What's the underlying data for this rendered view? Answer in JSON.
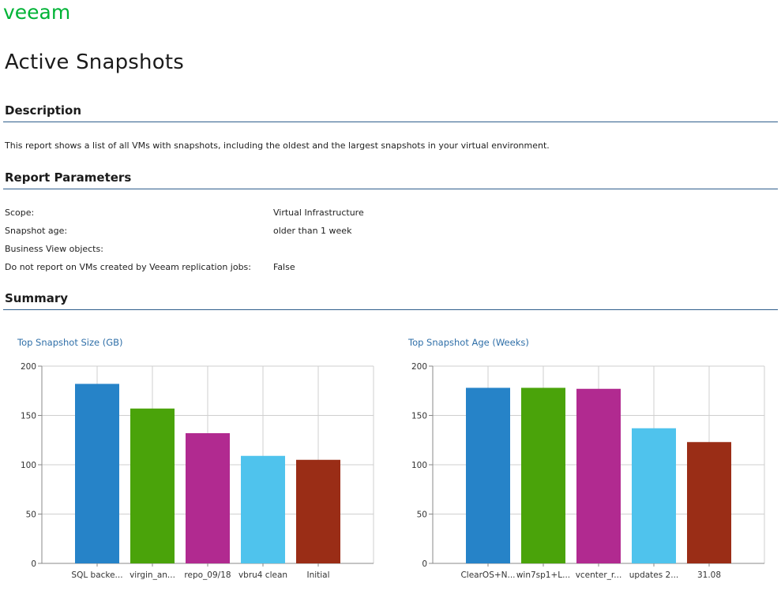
{
  "header": {
    "logo_text": "veeam",
    "logo_color": "#00b336",
    "page_title": "Active Snapshots"
  },
  "description": {
    "heading": "Description",
    "text": "This report shows a list of all VMs with snapshots, including the oldest and the largest snapshots in your virtual environment."
  },
  "parameters": {
    "heading": "Report Parameters",
    "rows": [
      {
        "label": "Scope:",
        "value": "Virtual Infrastructure"
      },
      {
        "label": "Snapshot age:",
        "value": "older than 1 week"
      },
      {
        "label": "Business View objects:",
        "value": ""
      },
      {
        "label": "Do not report on VMs created by Veeam replication jobs:",
        "value": "False"
      }
    ]
  },
  "summary": {
    "heading": "Summary"
  },
  "colors": {
    "accent_rule": "#2f5e8c",
    "chart_title": "#2f6fa8",
    "bar_palette": [
      "#2683c8",
      "#4aa30a",
      "#b12a90",
      "#4fc3ed",
      "#9a2d16"
    ]
  },
  "chart_data": [
    {
      "type": "bar",
      "title": "Top Snapshot Size (GB)",
      "categories": [
        "SQL backe...",
        "virgin_an...",
        "repo_09/18",
        "vbru4 clean",
        "Initial"
      ],
      "values": [
        182,
        157,
        132,
        109,
        105
      ],
      "ylim": [
        0,
        200
      ],
      "yticks": [
        0,
        50,
        100,
        150,
        200
      ],
      "grid": true,
      "xlabel": "",
      "ylabel": ""
    },
    {
      "type": "bar",
      "title": "Top Snapshot Age (Weeks)",
      "categories": [
        "ClearOS+N...",
        "win7sp1+L...",
        "vcenter_r...",
        "updates 2...",
        "31.08"
      ],
      "values": [
        178,
        178,
        177,
        137,
        123
      ],
      "ylim": [
        0,
        200
      ],
      "yticks": [
        0,
        50,
        100,
        150,
        200
      ],
      "grid": true,
      "xlabel": "",
      "ylabel": ""
    }
  ]
}
